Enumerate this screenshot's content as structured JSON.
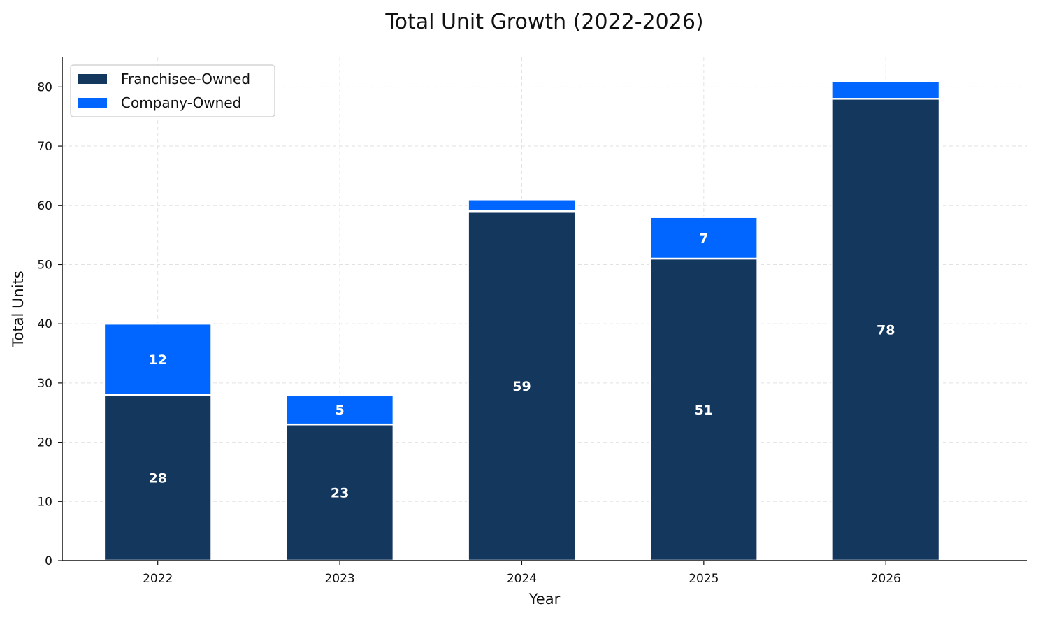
{
  "chart_data": {
    "type": "bar",
    "stacked": true,
    "title": "Total Unit Growth (2022-2026)",
    "xlabel": "Year",
    "ylabel": "Total Units",
    "categories": [
      "2022",
      "2023",
      "2024",
      "2025",
      "2026"
    ],
    "series": [
      {
        "name": "Franchisee-Owned",
        "values": [
          28,
          23,
          59,
          51,
          78
        ],
        "color": "#14375E",
        "data_labels": [
          "28",
          "23",
          "59",
          "51",
          "78"
        ]
      },
      {
        "name": "Company-Owned",
        "values": [
          12,
          5,
          2,
          7,
          3
        ],
        "color": "#0066FF",
        "data_labels": [
          "12",
          "5",
          "",
          "7",
          ""
        ]
      }
    ],
    "ylim": [
      0,
      85
    ],
    "yticks": [
      "0",
      "10",
      "20",
      "30",
      "40",
      "50",
      "60",
      "70",
      "80"
    ],
    "grid": true,
    "legend_position": "top-left"
  }
}
